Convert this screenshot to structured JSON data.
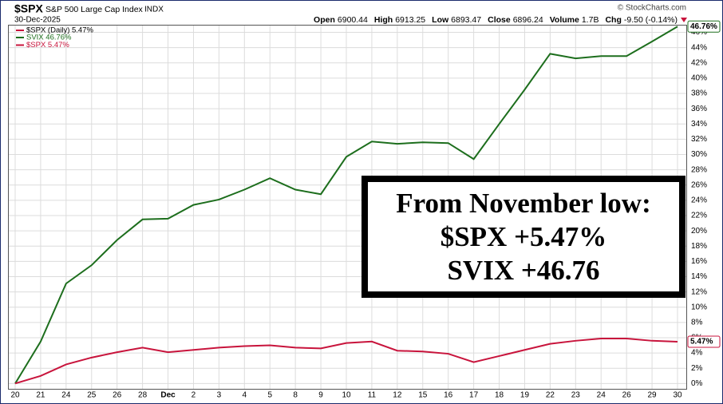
{
  "chart_data": {
    "type": "line",
    "symbol": "$SPX",
    "description": "S&P 500 Large Cap Index",
    "exchange": "INDX",
    "date": "30-Dec-2025",
    "quote": [
      {
        "label": "Open",
        "value": "6900.44"
      },
      {
        "label": "High",
        "value": "6913.25"
      },
      {
        "label": "Low",
        "value": "6893.47"
      },
      {
        "label": "Close",
        "value": "6896.24"
      },
      {
        "label": "Volume",
        "value": "1.7B"
      },
      {
        "label": "Chg",
        "value": "-9.50 (-0.14%)"
      }
    ],
    "credit": "© StockCharts.com",
    "price_legend": "$SPX (Daily) 5.47%",
    "annotation": [
      "From November low:",
      "$SPX +5.47%",
      "SVIX +46.76"
    ],
    "categories": [
      "20",
      "21",
      "24",
      "25",
      "26",
      "28",
      "Dec",
      "2",
      "3",
      "4",
      "5",
      "8",
      "9",
      "10",
      "11",
      "12",
      "15",
      "16",
      "17",
      "18",
      "19",
      "22",
      "23",
      "24",
      "26",
      "29",
      "30"
    ],
    "series": [
      {
        "name": "SVIX 46.76%",
        "color": "#1d6e1d",
        "values": [
          0,
          5.5,
          13.1,
          15.5,
          18.8,
          21.5,
          21.6,
          23.4,
          24.1,
          25.4,
          26.9,
          25.4,
          24.8,
          29.7,
          31.7,
          31.4,
          31.6,
          31.5,
          29.4,
          34.0,
          38.5,
          43.2,
          42.6,
          42.9,
          42.9,
          44.8,
          46.76
        ],
        "value_labels": [
          null,
          null,
          null,
          null,
          null,
          null,
          null,
          null,
          null,
          null,
          null,
          null,
          null,
          null,
          null,
          null,
          null,
          null,
          null,
          null,
          null,
          null,
          null,
          null,
          null,
          null,
          "46.76%"
        ]
      },
      {
        "name": "$SPX 5.47%",
        "color": "#c8143c",
        "values": [
          0,
          1.0,
          2.5,
          3.4,
          4.1,
          4.7,
          4.1,
          4.4,
          4.7,
          4.9,
          5.0,
          4.7,
          4.6,
          5.3,
          5.5,
          4.3,
          4.2,
          3.9,
          2.8,
          3.6,
          4.4,
          5.2,
          5.6,
          5.9,
          5.9,
          5.6,
          5.47
        ],
        "value_labels": [
          null,
          null,
          null,
          null,
          null,
          null,
          null,
          null,
          null,
          null,
          null,
          null,
          null,
          null,
          null,
          null,
          null,
          null,
          null,
          null,
          null,
          null,
          null,
          null,
          null,
          null,
          "5.47%"
        ]
      }
    ],
    "ylim": [
      -0.8,
      47
    ],
    "yticks": [
      {
        "value": 0,
        "label": "0%"
      },
      {
        "value": 2,
        "label": "2%"
      },
      {
        "value": 4,
        "label": "4%"
      },
      {
        "value": 6,
        "label": "6%"
      },
      {
        "value": 8,
        "label": "8%"
      },
      {
        "value": 10,
        "label": "10%"
      },
      {
        "value": 12,
        "label": "12%"
      },
      {
        "value": 14,
        "label": "14%"
      },
      {
        "value": 16,
        "label": "16%"
      },
      {
        "value": 18,
        "label": "18%"
      },
      {
        "value": 20,
        "label": "20%"
      },
      {
        "value": 22,
        "label": "22%"
      },
      {
        "value": 24,
        "label": "24%"
      },
      {
        "value": 26,
        "label": "26%"
      },
      {
        "value": 28,
        "label": "28%"
      },
      {
        "value": 30,
        "label": "30%"
      },
      {
        "value": 32,
        "label": "32%"
      },
      {
        "value": 34,
        "label": "34%"
      },
      {
        "value": 36,
        "label": "36%"
      },
      {
        "value": 38,
        "label": "38%"
      },
      {
        "value": 40,
        "label": "40%"
      },
      {
        "value": 42,
        "label": "42%"
      },
      {
        "value": 44,
        "label": "44%"
      },
      {
        "value": 46,
        "label": "46%"
      }
    ],
    "grid": true
  }
}
